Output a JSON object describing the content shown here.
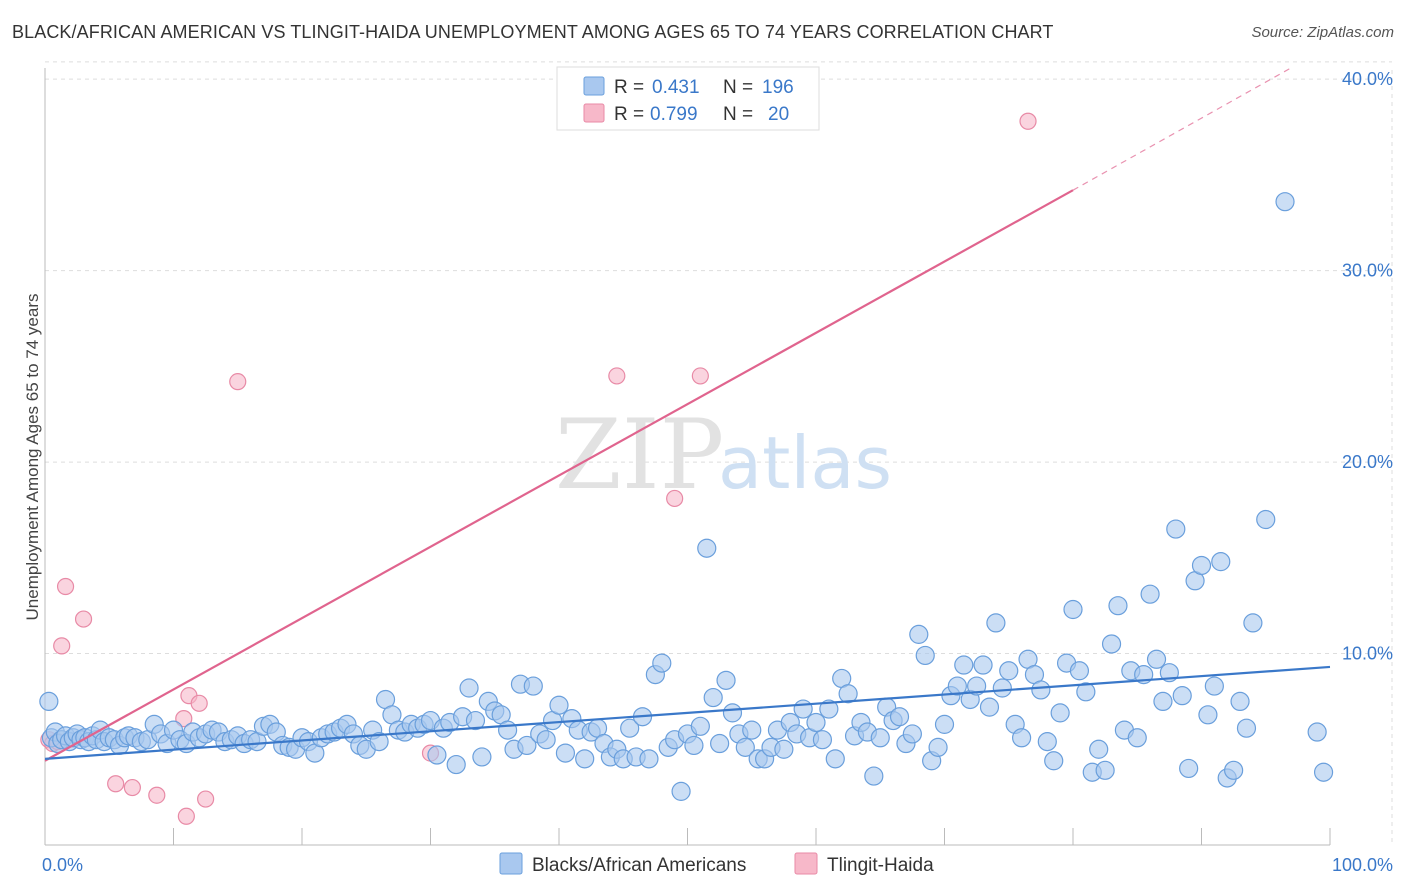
{
  "header": {
    "title": "BLACK/AFRICAN AMERICAN VS TLINGIT-HAIDA UNEMPLOYMENT AMONG AGES 65 TO 74 YEARS CORRELATION CHART",
    "source": "Source: ZipAtlas.com"
  },
  "watermark": {
    "zip": "ZIP",
    "atlas": "atlas"
  },
  "colors": {
    "blue_fill": "#a9c8ef",
    "blue_stroke": "#6a9fdc",
    "blue_line": "#3a78c9",
    "pink_fill": "#f7b8c9",
    "pink_stroke": "#e88aa6",
    "pink_line": "#e0648e",
    "grid": "#dddddd",
    "tick_text": "#3a78c9"
  },
  "legend": {
    "rows": [
      {
        "r_label": "R =",
        "r_value": "0.431",
        "n_label": "N =",
        "n_value": "196"
      },
      {
        "r_label": "R =",
        "r_value": "0.799",
        "n_label": "N =",
        "n_value": "20"
      }
    ]
  },
  "bottom_legend": [
    "Blacks/African Americans",
    "Tlingit-Haida"
  ],
  "chart_data": {
    "type": "scatter",
    "title": "BLACK/AFRICAN AMERICAN VS TLINGIT-HAIDA UNEMPLOYMENT AMONG AGES 65 TO 74 YEARS CORRELATION CHART",
    "xlabel": "",
    "ylabel": "Unemployment Among Ages 65 to 74 years",
    "xlim": [
      0,
      100
    ],
    "ylim": [
      0,
      41
    ],
    "x_ticks": [
      "0.0%",
      "100.0%"
    ],
    "y_ticks": [
      {
        "value": 10,
        "label": "10.0%"
      },
      {
        "value": 20,
        "label": "20.0%"
      },
      {
        "value": 30,
        "label": "30.0%"
      },
      {
        "value": 40,
        "label": "40.0%"
      }
    ],
    "grid": true,
    "legend_position": "top-center",
    "series": [
      {
        "name": "Blacks/African Americans",
        "R": 0.431,
        "N": 196,
        "trend": {
          "x": [
            0,
            100
          ],
          "y": [
            4.5,
            9.3
          ]
        },
        "points": [
          [
            0.3,
            7.5
          ],
          [
            0.5,
            5.6
          ],
          [
            0.8,
            5.9
          ],
          [
            1.0,
            5.3
          ],
          [
            1.3,
            5.5
          ],
          [
            1.6,
            5.7
          ],
          [
            1.9,
            5.4
          ],
          [
            2.2,
            5.6
          ],
          [
            2.5,
            5.8
          ],
          [
            2.8,
            5.5
          ],
          [
            3.1,
            5.6
          ],
          [
            3.4,
            5.4
          ],
          [
            3.7,
            5.7
          ],
          [
            4.0,
            5.5
          ],
          [
            4.3,
            6.0
          ],
          [
            4.6,
            5.4
          ],
          [
            5.0,
            5.6
          ],
          [
            5.4,
            5.5
          ],
          [
            5.8,
            5.2
          ],
          [
            6.2,
            5.6
          ],
          [
            6.5,
            5.7
          ],
          [
            7.0,
            5.6
          ],
          [
            7.5,
            5.4
          ],
          [
            8.0,
            5.5
          ],
          [
            8.5,
            6.3
          ],
          [
            9.0,
            5.8
          ],
          [
            9.5,
            5.3
          ],
          [
            10.0,
            6.0
          ],
          [
            10.5,
            5.5
          ],
          [
            11.0,
            5.3
          ],
          [
            11.5,
            5.9
          ],
          [
            12.0,
            5.6
          ],
          [
            12.5,
            5.8
          ],
          [
            13.0,
            6.0
          ],
          [
            13.5,
            5.9
          ],
          [
            14.0,
            5.4
          ],
          [
            14.5,
            5.5
          ],
          [
            15.0,
            5.7
          ],
          [
            15.5,
            5.3
          ],
          [
            16.0,
            5.5
          ],
          [
            16.5,
            5.4
          ],
          [
            17.0,
            6.2
          ],
          [
            17.5,
            6.3
          ],
          [
            18.0,
            5.9
          ],
          [
            18.5,
            5.2
          ],
          [
            19.0,
            5.1
          ],
          [
            19.5,
            5.0
          ],
          [
            20.0,
            5.6
          ],
          [
            20.5,
            5.4
          ],
          [
            21.0,
            4.8
          ],
          [
            21.5,
            5.6
          ],
          [
            22.0,
            5.8
          ],
          [
            22.5,
            5.9
          ],
          [
            23.0,
            6.1
          ],
          [
            23.5,
            6.3
          ],
          [
            24.0,
            5.8
          ],
          [
            24.5,
            5.2
          ],
          [
            25.0,
            5.0
          ],
          [
            25.5,
            6.0
          ],
          [
            26.0,
            5.4
          ],
          [
            26.5,
            7.6
          ],
          [
            27.0,
            6.8
          ],
          [
            27.5,
            6.0
          ],
          [
            28.0,
            5.9
          ],
          [
            28.5,
            6.3
          ],
          [
            29.0,
            6.1
          ],
          [
            29.5,
            6.3
          ],
          [
            30.0,
            6.5
          ],
          [
            30.5,
            4.7
          ],
          [
            31.0,
            6.1
          ],
          [
            31.5,
            6.4
          ],
          [
            32.0,
            4.2
          ],
          [
            32.5,
            6.7
          ],
          [
            33.0,
            8.2
          ],
          [
            33.5,
            6.5
          ],
          [
            34.0,
            4.6
          ],
          [
            34.5,
            7.5
          ],
          [
            35.0,
            7.0
          ],
          [
            35.5,
            6.8
          ],
          [
            36.0,
            6.0
          ],
          [
            36.5,
            5.0
          ],
          [
            37.0,
            8.4
          ],
          [
            37.5,
            5.2
          ],
          [
            38.0,
            8.3
          ],
          [
            38.5,
            5.8
          ],
          [
            39.0,
            5.5
          ],
          [
            39.5,
            6.5
          ],
          [
            40.0,
            7.3
          ],
          [
            40.5,
            4.8
          ],
          [
            41.0,
            6.6
          ],
          [
            41.5,
            6.0
          ],
          [
            42.0,
            4.5
          ],
          [
            42.5,
            5.9
          ],
          [
            43.0,
            6.1
          ],
          [
            43.5,
            5.3
          ],
          [
            44.0,
            4.6
          ],
          [
            44.5,
            5.0
          ],
          [
            45.0,
            4.5
          ],
          [
            45.5,
            6.1
          ],
          [
            46.0,
            4.6
          ],
          [
            46.5,
            6.7
          ],
          [
            47.0,
            4.5
          ],
          [
            47.5,
            8.9
          ],
          [
            48.0,
            9.5
          ],
          [
            48.5,
            5.1
          ],
          [
            49.0,
            5.5
          ],
          [
            49.5,
            2.8
          ],
          [
            50.0,
            5.8
          ],
          [
            50.5,
            5.2
          ],
          [
            51.0,
            6.2
          ],
          [
            51.5,
            15.5
          ],
          [
            52.0,
            7.7
          ],
          [
            52.5,
            5.3
          ],
          [
            53.0,
            8.6
          ],
          [
            53.5,
            6.9
          ],
          [
            54.0,
            5.8
          ],
          [
            54.5,
            5.1
          ],
          [
            55.0,
            6.0
          ],
          [
            55.5,
            4.5
          ],
          [
            56.0,
            4.5
          ],
          [
            56.5,
            5.1
          ],
          [
            57.0,
            6.0
          ],
          [
            57.5,
            5.0
          ],
          [
            58.0,
            6.4
          ],
          [
            58.5,
            5.8
          ],
          [
            59.0,
            7.1
          ],
          [
            59.5,
            5.6
          ],
          [
            60.0,
            6.4
          ],
          [
            60.5,
            5.5
          ],
          [
            61.0,
            7.1
          ],
          [
            61.5,
            4.5
          ],
          [
            62.0,
            8.7
          ],
          [
            62.5,
            7.9
          ],
          [
            63.0,
            5.7
          ],
          [
            63.5,
            6.4
          ],
          [
            64.0,
            5.9
          ],
          [
            64.5,
            3.6
          ],
          [
            65.0,
            5.6
          ],
          [
            65.5,
            7.2
          ],
          [
            66.0,
            6.5
          ],
          [
            66.5,
            6.7
          ],
          [
            67.0,
            5.3
          ],
          [
            67.5,
            5.8
          ],
          [
            68.0,
            11.0
          ],
          [
            68.5,
            9.9
          ],
          [
            69.0,
            4.4
          ],
          [
            69.5,
            5.1
          ],
          [
            70.0,
            6.3
          ],
          [
            70.5,
            7.8
          ],
          [
            71.0,
            8.3
          ],
          [
            71.5,
            9.4
          ],
          [
            72.0,
            7.6
          ],
          [
            72.5,
            8.3
          ],
          [
            73.0,
            9.4
          ],
          [
            73.5,
            7.2
          ],
          [
            74.0,
            11.6
          ],
          [
            74.5,
            8.2
          ],
          [
            75.0,
            9.1
          ],
          [
            75.5,
            6.3
          ],
          [
            76.0,
            5.6
          ],
          [
            76.5,
            9.7
          ],
          [
            77.0,
            8.9
          ],
          [
            77.5,
            8.1
          ],
          [
            78.0,
            5.4
          ],
          [
            78.5,
            4.4
          ],
          [
            79.0,
            6.9
          ],
          [
            79.5,
            9.5
          ],
          [
            80.0,
            12.3
          ],
          [
            80.5,
            9.1
          ],
          [
            81.0,
            8.0
          ],
          [
            81.5,
            3.8
          ],
          [
            82.0,
            5.0
          ],
          [
            82.5,
            3.9
          ],
          [
            83.0,
            10.5
          ],
          [
            83.5,
            12.5
          ],
          [
            84.0,
            6.0
          ],
          [
            84.5,
            9.1
          ],
          [
            85.0,
            5.6
          ],
          [
            85.5,
            8.9
          ],
          [
            86.0,
            13.1
          ],
          [
            86.5,
            9.7
          ],
          [
            87.0,
            7.5
          ],
          [
            87.5,
            9.0
          ],
          [
            88.0,
            16.5
          ],
          [
            88.5,
            7.8
          ],
          [
            89.0,
            4.0
          ],
          [
            89.5,
            13.8
          ],
          [
            90.0,
            14.6
          ],
          [
            90.5,
            6.8
          ],
          [
            91.0,
            8.3
          ],
          [
            91.5,
            14.8
          ],
          [
            92.0,
            3.5
          ],
          [
            92.5,
            3.9
          ],
          [
            93.0,
            7.5
          ],
          [
            93.5,
            6.1
          ],
          [
            94.0,
            11.6
          ],
          [
            95.0,
            17.0
          ],
          [
            96.5,
            33.6
          ],
          [
            99.0,
            5.9
          ],
          [
            99.5,
            3.8
          ]
        ]
      },
      {
        "name": "Tlingit-Haida",
        "R": 0.799,
        "N": 20,
        "trend": {
          "x": [
            0,
            80
          ],
          "y": [
            4.4,
            34.2
          ]
        },
        "trend_dashed": {
          "x": [
            80,
            97
          ],
          "y": [
            34.2,
            40.6
          ]
        },
        "points": [
          [
            0.3,
            5.5
          ],
          [
            0.6,
            5.3
          ],
          [
            1.0,
            5.4
          ],
          [
            1.3,
            10.4
          ],
          [
            1.6,
            13.5
          ],
          [
            3.0,
            11.8
          ],
          [
            5.5,
            3.2
          ],
          [
            6.8,
            3.0
          ],
          [
            8.7,
            2.6
          ],
          [
            10.8,
            6.6
          ],
          [
            11.0,
            1.5
          ],
          [
            11.2,
            7.8
          ],
          [
            12.0,
            7.4
          ],
          [
            12.5,
            2.4
          ],
          [
            15.0,
            24.2
          ],
          [
            30.0,
            4.8
          ],
          [
            44.5,
            24.5
          ],
          [
            49.0,
            18.1
          ],
          [
            51.0,
            24.5
          ],
          [
            76.5,
            37.8
          ]
        ]
      }
    ]
  }
}
